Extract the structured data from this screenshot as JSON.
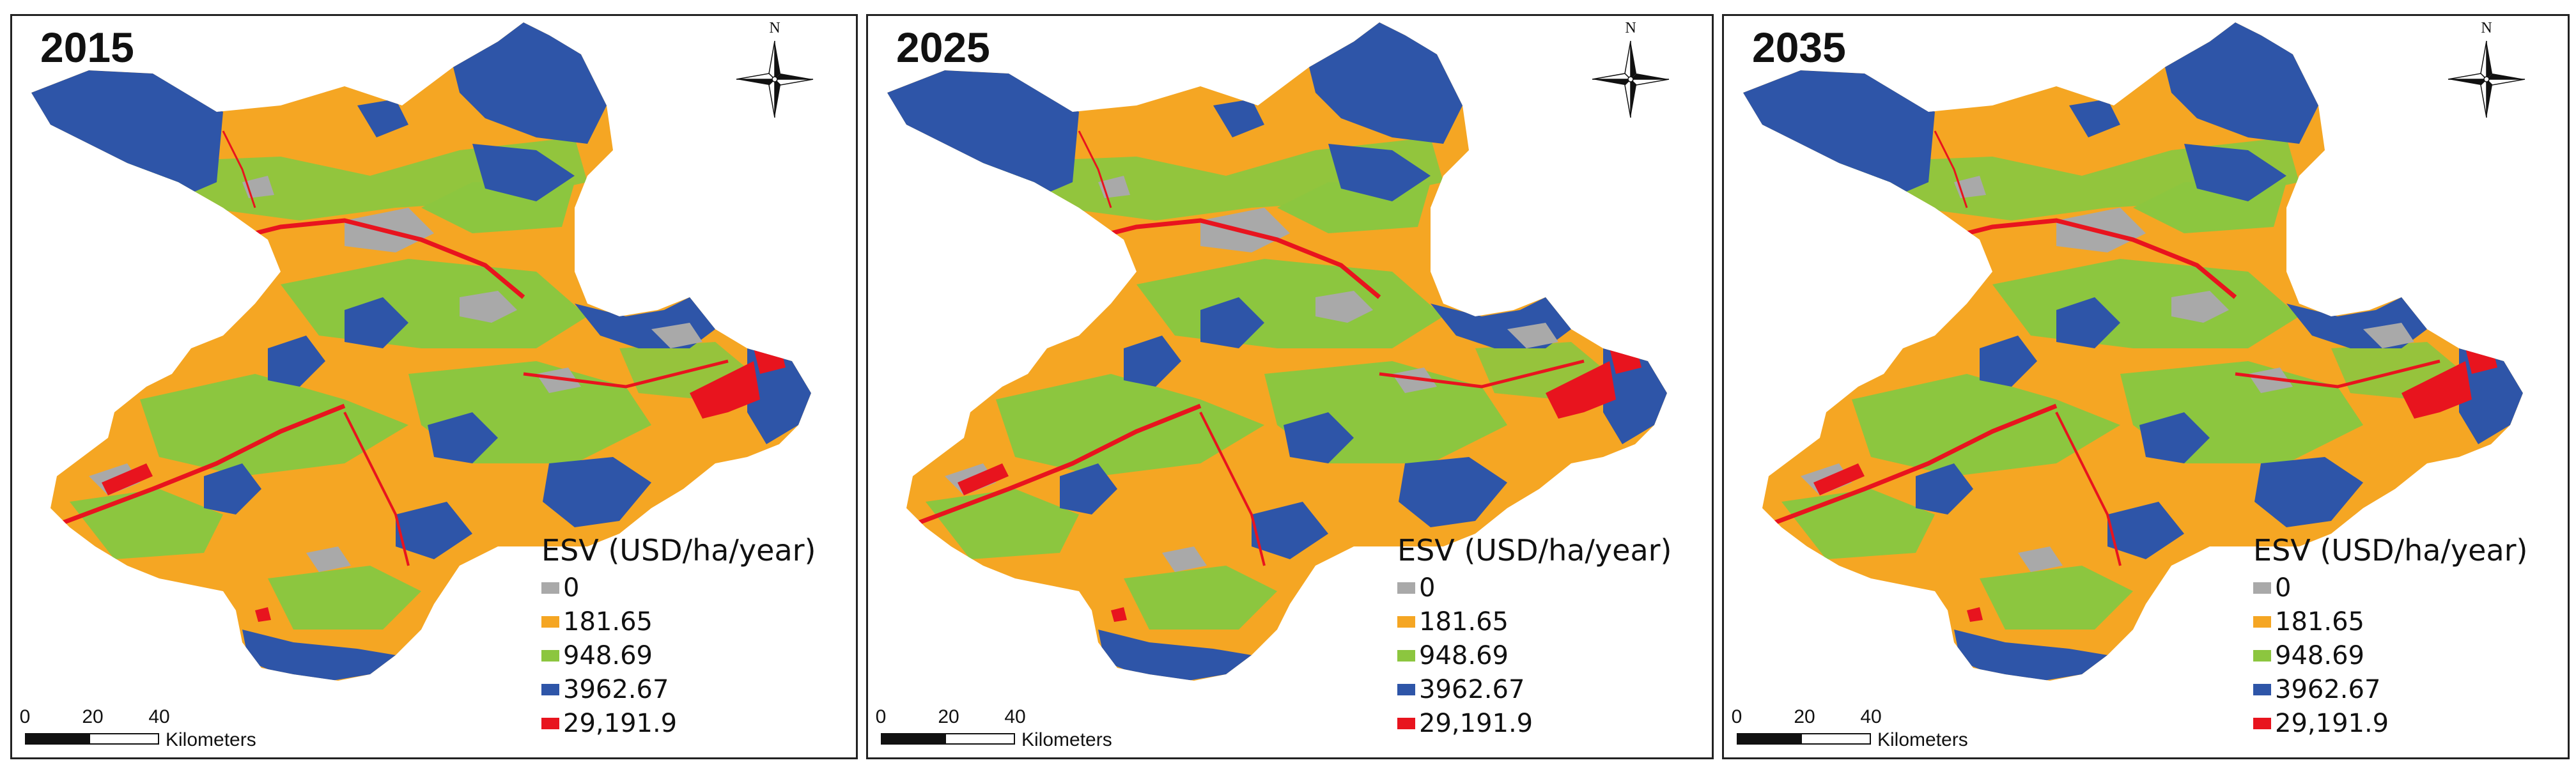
{
  "colors": {
    "esv_0": "#A9A9A9",
    "esv_181_65": "#F5A623",
    "esv_948_69": "#8CC63F",
    "esv_3962_67": "#2E55A8",
    "esv_29191_9": "#E8141E"
  },
  "legend": {
    "title": "ESV (USD/ha/year)",
    "items": [
      {
        "label": "0",
        "color": "#A9A9A9"
      },
      {
        "label": "181.65",
        "color": "#F5A623"
      },
      {
        "label": "948.69",
        "color": "#8CC63F"
      },
      {
        "label": "3962.67",
        "color": "#2E55A8"
      },
      {
        "label": "29,191.9",
        "color": "#E8141E"
      }
    ]
  },
  "north_arrow": {
    "label": "N",
    "icon": "compass-north-arrow-icon"
  },
  "scale_bar": {
    "ticks": [
      "0",
      "20",
      "40"
    ],
    "unit": "Kilometers"
  },
  "panels": [
    {
      "year": "2015"
    },
    {
      "year": "2025"
    },
    {
      "year": "2035"
    }
  ]
}
